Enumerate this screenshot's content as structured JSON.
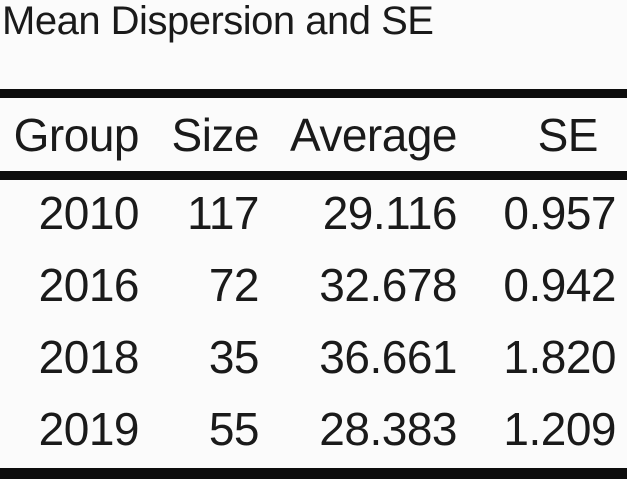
{
  "page": {
    "background": "#fbfbfb",
    "text_color": "#1a1a1a",
    "rule_color": "#0d0d0d"
  },
  "chart_data": {
    "type": "table",
    "title": "Mean Dispersion and SE",
    "columns": [
      "Group",
      "Size",
      "Average",
      "SE"
    ],
    "rows": [
      [
        "2010",
        "117",
        "29.116",
        "0.957"
      ],
      [
        "2016",
        "72",
        "32.678",
        "0.942"
      ],
      [
        "2018",
        "35",
        "36.661",
        "1.820"
      ],
      [
        "2019",
        "55",
        "28.383",
        "1.209"
      ]
    ]
  }
}
